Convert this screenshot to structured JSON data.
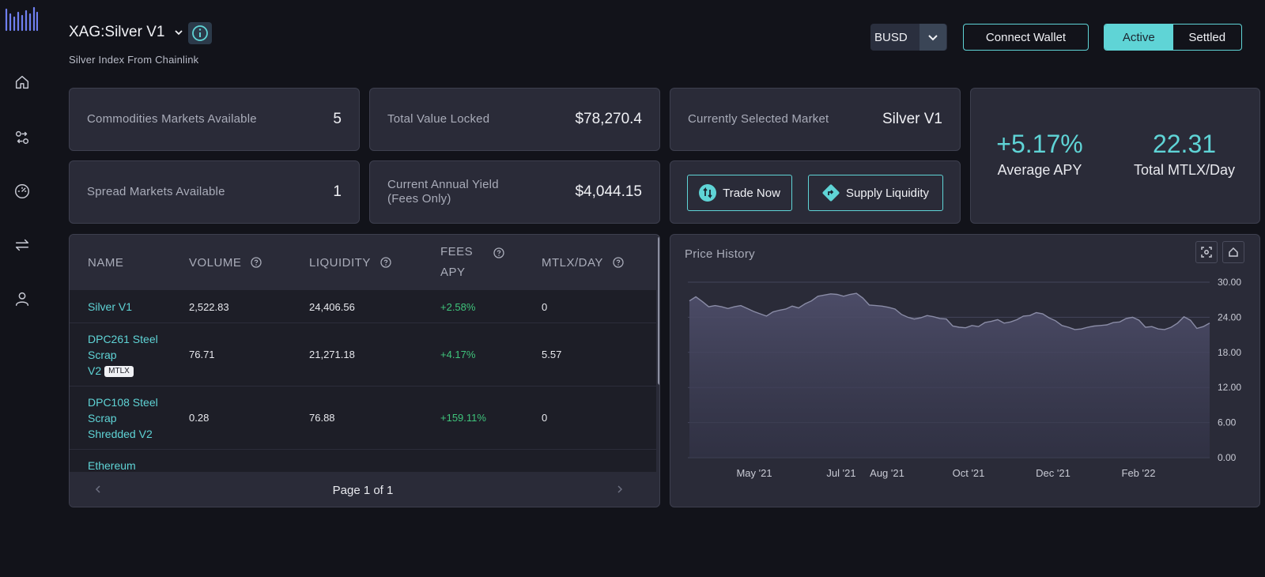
{
  "header": {
    "market_title": "XAG:Silver V1",
    "subtitle": "Silver Index From Chainlink",
    "currency": "BUSD",
    "connect_wallet": "Connect Wallet",
    "toggle_active": "Active",
    "toggle_settled": "Settled"
  },
  "sidebar": {
    "icons": [
      "home-icon",
      "swap-icon",
      "dashboard-icon",
      "exchange-icon",
      "user-icon"
    ]
  },
  "stats": {
    "commodities_label": "Commodities Markets Available",
    "commodities_value": "5",
    "spread_label": "Spread Markets Available",
    "spread_value": "1",
    "tvl_label": "Total Value Locked",
    "tvl_value": "$78,270.4",
    "yield_label_line1": "Current Annual Yield",
    "yield_label_line2": "(Fees Only)",
    "yield_value": "$4,044.15",
    "selected_label": "Currently Selected Market",
    "selected_value": "Silver V1",
    "trade_now": "Trade Now",
    "supply_liquidity": "Supply Liquidity",
    "avg_apy_value": "+5.17%",
    "avg_apy_label": "Average APY",
    "mtlx_value": "22.31",
    "mtlx_label": "Total MTLX/Day"
  },
  "table": {
    "columns": {
      "name": "NAME",
      "volume": "VOLUME",
      "liquidity": "LIQUIDITY",
      "fees_line1": "FEES",
      "fees_line2": "APY",
      "mtlx": "MTLX/DAY"
    },
    "rows": [
      {
        "name": "Silver V1",
        "volume": "2,522.83",
        "liquidity": "24,406.56",
        "fees": "+2.58%",
        "mtlx": "0"
      },
      {
        "name_l1": "DPC261 Steel",
        "name_l2": "Scrap",
        "name_l3": "V2",
        "badge": "MTLX",
        "volume": "76.71",
        "liquidity": "21,271.18",
        "fees": "+4.17%",
        "mtlx": "5.57"
      },
      {
        "name_l1": "DPC108 Steel",
        "name_l2": "Scrap",
        "name_l3": "Shredded V2",
        "volume": "0.28",
        "liquidity": "76.88",
        "fees": "+159.11%",
        "mtlx": "0"
      },
      {
        "name_l1": "Ethereum"
      }
    ],
    "pagination": "Page 1 of 1"
  },
  "chart": {
    "title": "Price History"
  },
  "chart_data": {
    "type": "area",
    "title": "Price History",
    "xlabel": "",
    "ylabel": "",
    "ylim": [
      0,
      30
    ],
    "yticks": [
      "30.00",
      "24.00",
      "18.00",
      "12.00",
      "6.00",
      "0.00"
    ],
    "xticks": [
      "May '21",
      "Jul '21",
      "Aug '21",
      "Oct '21",
      "Dec '21",
      "Feb '22"
    ],
    "grid": true,
    "series": [
      {
        "values": [
          26.8,
          27.5,
          26.7,
          25.8,
          26.0,
          25.8,
          25.5,
          25.8,
          26.0,
          25.5,
          25.0,
          24.6,
          24.2,
          24.9,
          25.2,
          25.4,
          25.9,
          25.6,
          26.3,
          26.8,
          27.6,
          27.8,
          28.0,
          27.9,
          27.6,
          27.9,
          28.1,
          27.3,
          26.1,
          26.0,
          25.9,
          25.7,
          25.4,
          24.5,
          24.0,
          23.7,
          23.9,
          24.3,
          24.1,
          23.8,
          23.7,
          22.5,
          22.3,
          22.2,
          22.6,
          22.4,
          23.1,
          23.3,
          23.6,
          23.0,
          23.2,
          23.6,
          24.2,
          24.3,
          24.8,
          24.6,
          23.9,
          23.4,
          22.6,
          22.3,
          21.9,
          22.0,
          22.3,
          22.5,
          22.6,
          22.7,
          23.1,
          23.2,
          23.8,
          24.0,
          23.5,
          22.3,
          22.4,
          22.0,
          21.9,
          22.3,
          23.0,
          24.1,
          23.5,
          22.1,
          22.4,
          23.0
        ]
      }
    ]
  }
}
